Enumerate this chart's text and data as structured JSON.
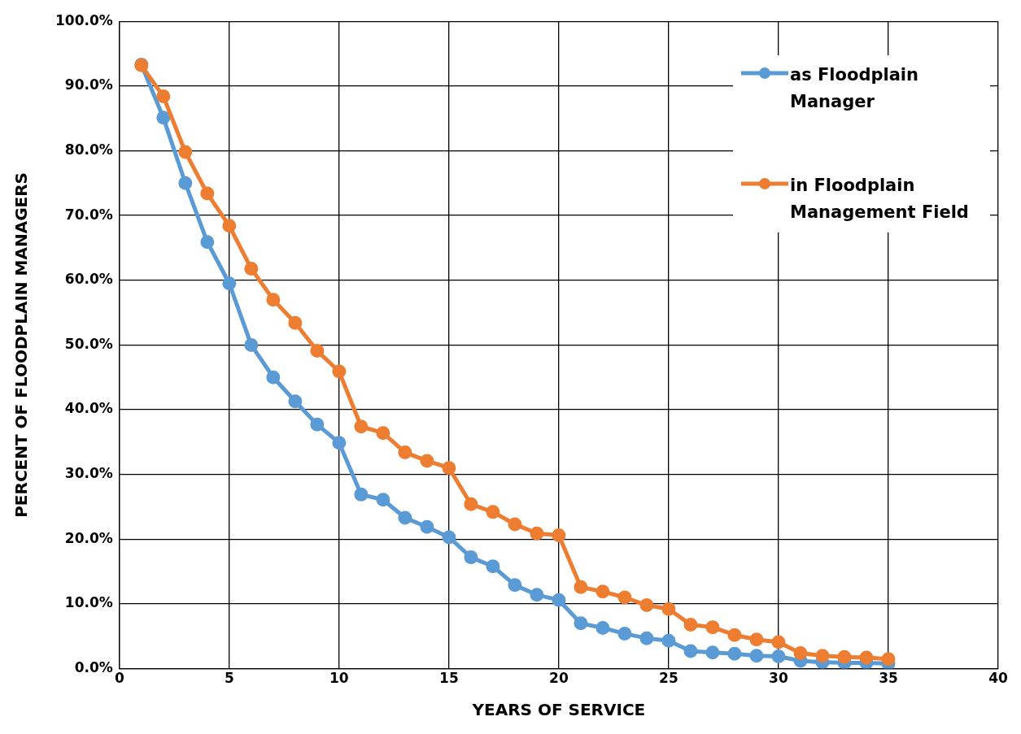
{
  "chart_data": {
    "type": "line",
    "xlabel": "YEARS OF SERVICE",
    "ylabel": "PERCENT OF FLOODPLAIN MANAGERS",
    "x": [
      1,
      2,
      3,
      4,
      5,
      6,
      7,
      8,
      9,
      10,
      11,
      12,
      13,
      14,
      15,
      16,
      17,
      18,
      19,
      20,
      21,
      22,
      23,
      24,
      25,
      26,
      27,
      28,
      29,
      30,
      31,
      32,
      33,
      34,
      35
    ],
    "series": [
      {
        "name": "as Floodplain Manager",
        "color": "#5b9bd5",
        "values": [
          93.3,
          85.1,
          75.0,
          65.9,
          59.5,
          50.0,
          45.0,
          41.3,
          37.7,
          34.9,
          26.9,
          26.1,
          23.3,
          21.9,
          20.3,
          17.2,
          15.8,
          12.9,
          11.4,
          10.6,
          7.0,
          6.3,
          5.4,
          4.7,
          4.3,
          2.7,
          2.5,
          2.3,
          2.0,
          1.9,
          1.2,
          1.0,
          0.9,
          0.9,
          0.8
        ]
      },
      {
        "name": "in Floodplain Management Field",
        "color": "#ed7d31",
        "values": [
          93.2,
          88.4,
          79.8,
          73.4,
          68.4,
          61.8,
          57.0,
          53.4,
          49.1,
          45.9,
          37.4,
          36.4,
          33.4,
          32.1,
          31.0,
          25.4,
          24.2,
          22.3,
          20.9,
          20.6,
          12.6,
          11.9,
          11.0,
          9.8,
          9.2,
          6.8,
          6.4,
          5.2,
          4.5,
          4.1,
          2.4,
          2.0,
          1.8,
          1.7,
          1.5
        ]
      }
    ],
    "xlim": [
      0,
      40
    ],
    "xticks": [
      0,
      5,
      10,
      15,
      20,
      25,
      30,
      35,
      40
    ],
    "ylim": [
      0,
      100
    ],
    "yticks": [
      {
        "value": 0,
        "label": "0.0%"
      },
      {
        "value": 10,
        "label": "10.0%"
      },
      {
        "value": 20,
        "label": "20.0%"
      },
      {
        "value": 30,
        "label": "30.0%"
      },
      {
        "value": 40,
        "label": "40.0%"
      },
      {
        "value": 50,
        "label": "50.0%"
      },
      {
        "value": 60,
        "label": "60.0%"
      },
      {
        "value": 70,
        "label": "70.0%"
      },
      {
        "value": 80,
        "label": "80.0%"
      },
      {
        "value": 90,
        "label": "90.0%"
      },
      {
        "value": 100,
        "label": "100.0%"
      }
    ],
    "grid": true,
    "legend": "top right",
    "marker": "circle",
    "line_style": "solid"
  }
}
